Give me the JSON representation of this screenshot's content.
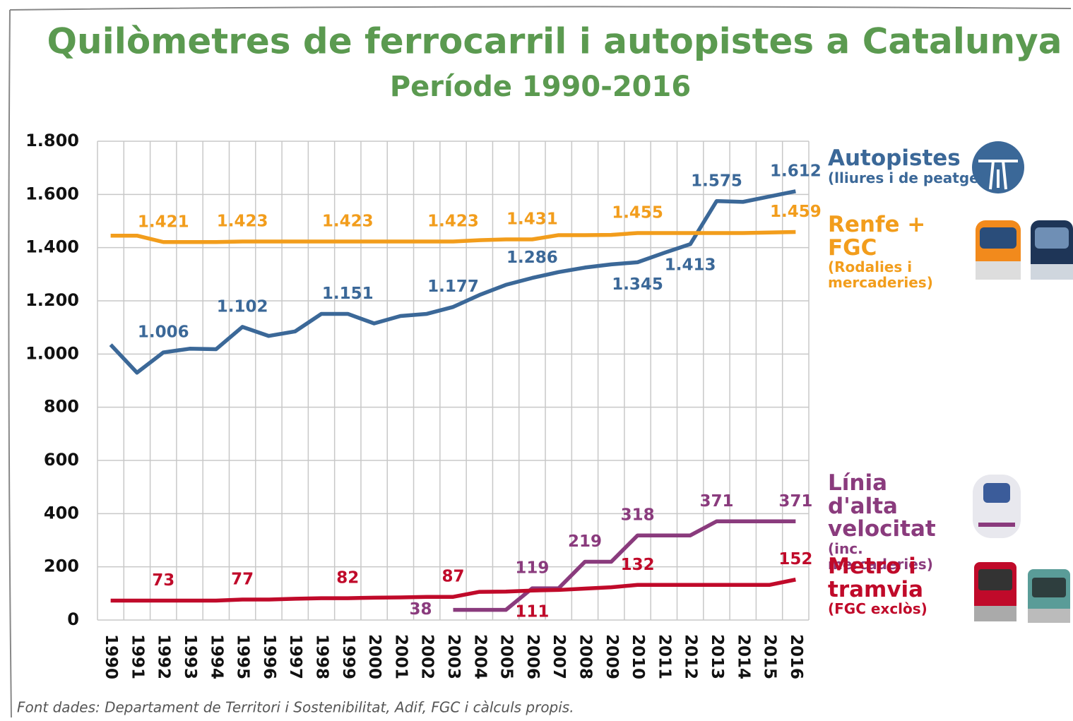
{
  "chart_data": {
    "type": "line",
    "title": "Quilòmetres de ferrocarril i autopistes a Catalunya",
    "subtitle": "Període 1990-2016",
    "source": "Font dades: Departament de Territori i Sostenibilitat, Adif, FGC i càlculs propis.",
    "categories": [
      "1990",
      "1991",
      "1992",
      "1993",
      "1994",
      "1995",
      "1996",
      "1997",
      "1998",
      "1999",
      "2000",
      "2001",
      "2002",
      "2003",
      "2004",
      "2005",
      "2006",
      "2007",
      "2008",
      "2009",
      "2010",
      "2011",
      "2012",
      "2013",
      "2014",
      "2015",
      "2016"
    ],
    "ylim": [
      0,
      1800
    ],
    "yticks": [
      0,
      200,
      400,
      600,
      800,
      {
        "value": 1000,
        "label": "1.000"
      },
      {
        "value": 1200,
        "label": "1.200"
      },
      {
        "value": 1400,
        "label": "1.400"
      },
      {
        "value": 1600,
        "label": "1.600"
      },
      {
        "value": 1800,
        "label": "1.800"
      }
    ],
    "grid": true,
    "series": [
      {
        "name": "Autopistes",
        "note": "(lliures i de peatge)",
        "color": "#3b6898",
        "values": [
          1035,
          930,
          1006,
          1020,
          1018,
          1102,
          1068,
          1085,
          1151,
          1151,
          1115,
          1143,
          1151,
          1177,
          1222,
          1260,
          1286,
          1308,
          1325,
          1337,
          1345,
          1380,
          1413,
          1575,
          1572,
          1592,
          1612
        ],
        "value_labels": [
          null,
          null,
          "1.006",
          null,
          null,
          "1.102",
          null,
          null,
          null,
          "1.151",
          null,
          null,
          null,
          "1.177",
          null,
          null,
          "1.286",
          null,
          null,
          null,
          "1.345",
          null,
          "1.413",
          "1.575",
          null,
          null,
          "1.612"
        ]
      },
      {
        "name": "Renfe + FGC",
        "note": "(Rodalies i mercaderies)",
        "color": "#f29d1c",
        "values": [
          1445,
          1445,
          1421,
          1421,
          1421,
          1423,
          1423,
          1423,
          1423,
          1423,
          1423,
          1423,
          1423,
          1423,
          1428,
          1431,
          1431,
          1447,
          1447,
          1448,
          1455,
          1455,
          1455,
          1455,
          1455,
          1457,
          1459
        ],
        "value_labels": [
          null,
          null,
          "1.421",
          null,
          null,
          "1.423",
          null,
          null,
          null,
          "1.423",
          null,
          null,
          null,
          "1.423",
          null,
          null,
          "1.431",
          null,
          null,
          null,
          "1.455",
          null,
          null,
          null,
          null,
          null,
          "1.459"
        ]
      },
      {
        "name": "Línia d'alta velocitat",
        "note": "(inc. mercaderies)",
        "color": "#8a3b7d",
        "values": [
          null,
          null,
          null,
          null,
          null,
          null,
          null,
          null,
          null,
          null,
          null,
          null,
          null,
          38,
          38,
          38,
          119,
          119,
          219,
          219,
          318,
          318,
          318,
          371,
          371,
          371,
          371
        ],
        "value_labels": [
          null,
          null,
          null,
          null,
          null,
          null,
          null,
          null,
          null,
          null,
          null,
          null,
          null,
          "38",
          null,
          null,
          "119",
          null,
          "219",
          null,
          "318",
          null,
          null,
          "371",
          null,
          null,
          "371"
        ]
      },
      {
        "name": "Metro i tramvia",
        "note": "(FGC exclòs)",
        "color": "#c00a2a",
        "values": [
          73,
          73,
          73,
          73,
          73,
          77,
          77,
          80,
          82,
          82,
          84,
          85,
          87,
          87,
          106,
          107,
          111,
          113,
          118,
          123,
          132,
          132,
          132,
          132,
          132,
          132,
          152
        ],
        "value_labels": [
          null,
          null,
          "73",
          null,
          null,
          "77",
          null,
          null,
          null,
          "82",
          null,
          null,
          null,
          "87",
          null,
          null,
          "111",
          null,
          null,
          null,
          "132",
          null,
          null,
          null,
          null,
          null,
          "152"
        ]
      }
    ]
  }
}
